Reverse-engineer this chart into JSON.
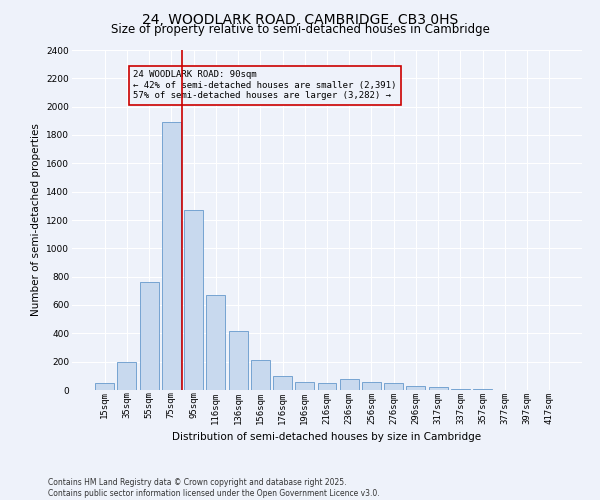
{
  "title1": "24, WOODLARK ROAD, CAMBRIDGE, CB3 0HS",
  "title2": "Size of property relative to semi-detached houses in Cambridge",
  "xlabel": "Distribution of semi-detached houses by size in Cambridge",
  "ylabel": "Number of semi-detached properties",
  "bin_labels": [
    "15sqm",
    "35sqm",
    "55sqm",
    "75sqm",
    "95sqm",
    "116sqm",
    "136sqm",
    "156sqm",
    "176sqm",
    "196sqm",
    "216sqm",
    "236sqm",
    "256sqm",
    "276sqm",
    "296sqm",
    "317sqm",
    "337sqm",
    "357sqm",
    "377sqm",
    "397sqm",
    "417sqm"
  ],
  "bar_values": [
    50,
    200,
    760,
    1890,
    1270,
    670,
    420,
    215,
    100,
    60,
    50,
    80,
    60,
    50,
    30,
    20,
    10,
    5,
    2,
    1,
    0
  ],
  "bar_color": "#c8d9ee",
  "bar_edge_color": "#6699cc",
  "vline_x_index": 3.5,
  "vline_color": "#cc0000",
  "annotation_text": "24 WOODLARK ROAD: 90sqm\n← 42% of semi-detached houses are smaller (2,391)\n57% of semi-detached houses are larger (3,282) →",
  "ylim": [
    0,
    2400
  ],
  "yticks": [
    0,
    200,
    400,
    600,
    800,
    1000,
    1200,
    1400,
    1600,
    1800,
    2000,
    2200,
    2400
  ],
  "footnote": "Contains HM Land Registry data © Crown copyright and database right 2025.\nContains public sector information licensed under the Open Government Licence v3.0.",
  "background_color": "#eef2fa",
  "grid_color": "#ffffff",
  "title1_fontsize": 10,
  "title2_fontsize": 8.5,
  "axis_fontsize": 7.5,
  "tick_fontsize": 6.5,
  "annotation_fontsize": 6.5,
  "footnote_fontsize": 5.5
}
